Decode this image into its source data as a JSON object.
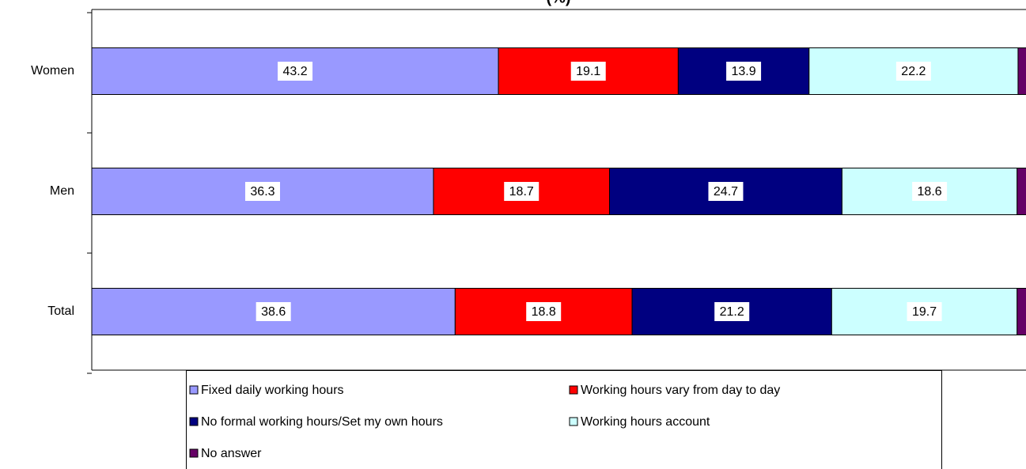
{
  "chart_data": {
    "type": "stacked-bar-horizontal",
    "title": "(%)",
    "categories": [
      "Women",
      "Men",
      "Total"
    ],
    "series": [
      {
        "name": "Fixed daily working hours",
        "color": "#9999ff",
        "values": [
          43.2,
          36.3,
          38.6
        ]
      },
      {
        "name": "Working hours vary from day to day",
        "color": "#ff0000",
        "values": [
          19.1,
          18.7,
          18.8
        ]
      },
      {
        "name": "No formal working hours/Set my own hours",
        "color": "#000080",
        "values": [
          13.9,
          24.7,
          21.2
        ]
      },
      {
        "name": "Working hours account",
        "color": "#ccffff",
        "values": [
          22.2,
          18.6,
          19.7
        ]
      },
      {
        "name": "No answer",
        "color": "#660066",
        "values": [
          1.6,
          1.7,
          1.7
        ]
      }
    ],
    "xlim": [
      0,
      100
    ],
    "legend": "bottom"
  }
}
